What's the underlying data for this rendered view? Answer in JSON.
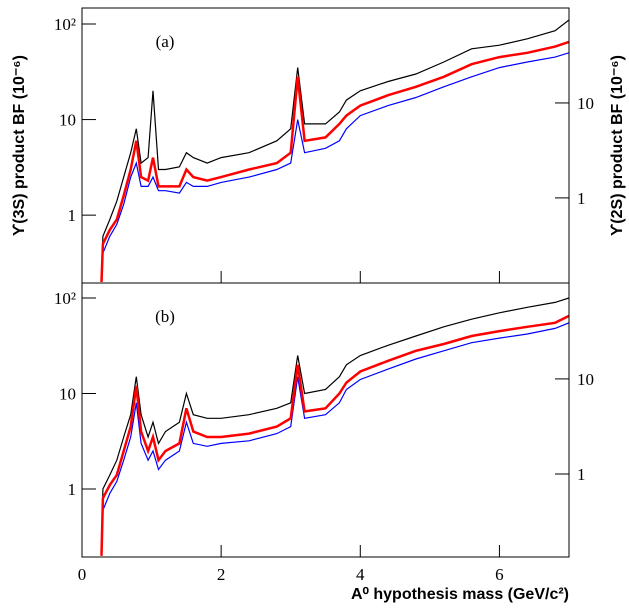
{
  "chart_data": [
    {
      "type": "line",
      "annotation": "(a)",
      "ylabel": "ϒ(3S) product BF (10⁻⁶)",
      "y2label": "ϒ(2S) product BF (10⁻⁶)",
      "log_y": true,
      "xlim": [
        0,
        7
      ],
      "xticks": [
        0,
        2,
        4,
        6
      ],
      "ylim": [
        0.195,
        147
      ],
      "yticks": [
        1,
        10,
        {
          "value": 100,
          "label": "10²"
        }
      ],
      "y2lim": [
        0.127,
        100
      ],
      "y2ticks": [
        1,
        10
      ],
      "x": [
        0.28,
        0.3,
        0.4,
        0.5,
        0.6,
        0.7,
        0.78,
        0.85,
        0.95,
        1.02,
        1.1,
        1.2,
        1.4,
        1.5,
        1.6,
        1.8,
        2.0,
        2.4,
        2.8,
        3.0,
        3.1,
        3.2,
        3.5,
        3.7,
        3.8,
        4.0,
        4.4,
        4.8,
        5.2,
        5.6,
        6.0,
        6.4,
        6.8,
        7.0
      ],
      "series": [
        {
          "color": "#000000",
          "values": [
            0.2,
            0.6,
            0.9,
            1.4,
            2.5,
            4.5,
            8,
            3.5,
            4,
            20,
            3,
            3,
            3.2,
            4.5,
            4,
            3.5,
            4,
            4.5,
            6,
            8,
            35,
            9,
            9,
            12,
            16,
            20,
            25,
            30,
            40,
            55,
            60,
            70,
            85,
            110
          ]
        },
        {
          "color": "#0000ff",
          "values": [
            0.2,
            0.4,
            0.6,
            0.8,
            1.3,
            2.5,
            3.5,
            2,
            2,
            2.5,
            1.8,
            1.8,
            1.7,
            2.2,
            2,
            2,
            2.2,
            2.5,
            3,
            3.5,
            10,
            4.5,
            5,
            6,
            8,
            11,
            14,
            17,
            22,
            28,
            35,
            40,
            45,
            50
          ]
        },
        {
          "color": "#ff0000",
          "values": [
            0.2,
            0.5,
            0.7,
            0.9,
            1.6,
            3,
            6,
            2.5,
            2.3,
            4,
            2,
            2,
            2,
            3,
            2.5,
            2.3,
            2.5,
            3,
            3.5,
            4.5,
            28,
            6,
            6.5,
            9,
            11,
            14,
            18,
            22,
            28,
            38,
            45,
            50,
            58,
            65
          ]
        }
      ]
    },
    {
      "type": "line",
      "annotation": "(b)",
      "xlabel": "A⁰ hypothesis mass (GeV/c²)",
      "log_y": true,
      "xlim": [
        0,
        7
      ],
      "xticks": [
        0,
        2,
        4,
        6
      ],
      "ylim": [
        0.194,
        143.6
      ],
      "yticks": [
        1,
        10,
        {
          "value": 100,
          "label": "10²"
        }
      ],
      "y2lim": [
        0.134,
        102
      ],
      "y2ticks": [
        1,
        10
      ],
      "x": [
        0.28,
        0.3,
        0.4,
        0.5,
        0.6,
        0.7,
        0.78,
        0.85,
        0.95,
        1.02,
        1.1,
        1.2,
        1.4,
        1.5,
        1.6,
        1.8,
        2.0,
        2.4,
        2.8,
        3.0,
        3.1,
        3.2,
        3.5,
        3.7,
        3.8,
        4.0,
        4.4,
        4.8,
        5.2,
        5.6,
        6.0,
        6.4,
        6.8,
        7.0
      ],
      "series": [
        {
          "color": "#000000",
          "values": [
            0.2,
            1,
            1.4,
            2,
            3.5,
            6,
            15,
            6,
            3.5,
            5,
            3,
            4,
            5,
            10,
            6,
            5.5,
            5.5,
            6,
            7,
            8,
            25,
            10,
            11,
            15,
            20,
            25,
            32,
            40,
            50,
            60,
            70,
            80,
            90,
            100
          ]
        },
        {
          "color": "#0000ff",
          "values": [
            0.2,
            0.6,
            0.9,
            1.2,
            2,
            3.5,
            8,
            3,
            2,
            2.5,
            1.6,
            2,
            2.5,
            5,
            3,
            2.8,
            3,
            3.2,
            3.8,
            4.5,
            15,
            5.5,
            6,
            8,
            11,
            14,
            18,
            23,
            28,
            34,
            38,
            42,
            48,
            55
          ]
        },
        {
          "color": "#ff0000",
          "values": [
            0.2,
            0.8,
            1.1,
            1.4,
            2.5,
            4.5,
            12,
            4,
            2.5,
            3.5,
            2,
            2.5,
            3,
            7,
            4,
            3.5,
            3.5,
            3.8,
            4.5,
            5.5,
            20,
            6.5,
            7,
            10,
            13,
            17,
            22,
            28,
            33,
            40,
            45,
            50,
            55,
            65
          ]
        }
      ]
    }
  ]
}
